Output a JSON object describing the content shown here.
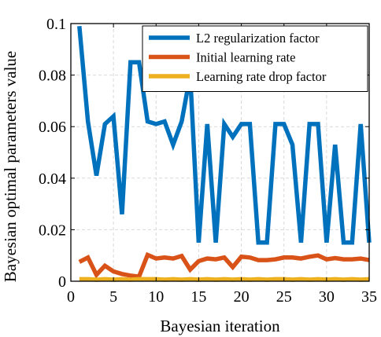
{
  "chart_data": {
    "type": "line",
    "xlabel": "Bayesian iteration",
    "ylabel": "Bayesian optimal parameters value",
    "xlim": [
      0,
      35
    ],
    "ylim": [
      0,
      0.1
    ],
    "xticks": [
      "0",
      "5",
      "10",
      "15",
      "20",
      "25",
      "30",
      "35"
    ],
    "yticks": [
      "0",
      "0.02",
      "0.04",
      "0.06",
      "0.08",
      "0.1"
    ],
    "xtick_values": [
      0,
      5,
      10,
      15,
      20,
      25,
      30,
      35
    ],
    "ytick_values": [
      0,
      0.02,
      0.04,
      0.06,
      0.08,
      0.1
    ],
    "grid": true,
    "legend_position": "top-right",
    "x": [
      1,
      2,
      3,
      4,
      5,
      6,
      7,
      8,
      9,
      10,
      11,
      12,
      13,
      14,
      15,
      16,
      17,
      18,
      19,
      20,
      21,
      22,
      23,
      24,
      25,
      26,
      27,
      28,
      29,
      30,
      31,
      32,
      33,
      34,
      35
    ],
    "series": [
      {
        "name": "L2 regularization factor",
        "color": "#0072BD",
        "values": [
          0.099,
          0.062,
          0.041,
          0.061,
          0.064,
          0.026,
          0.085,
          0.085,
          0.062,
          0.061,
          0.062,
          0.053,
          0.062,
          0.08,
          0.015,
          0.061,
          0.015,
          0.061,
          0.056,
          0.061,
          0.061,
          0.015,
          0.015,
          0.061,
          0.061,
          0.053,
          0.015,
          0.061,
          0.061,
          0.015,
          0.053,
          0.015,
          0.015,
          0.061,
          0.015
        ]
      },
      {
        "name": "Initial learning rate",
        "color": "#D95319",
        "values": [
          0.0075,
          0.0092,
          0.0025,
          0.006,
          0.0038,
          0.0028,
          0.0022,
          0.0018,
          0.0102,
          0.0088,
          0.0092,
          0.0088,
          0.0098,
          0.0045,
          0.0078,
          0.0088,
          0.0085,
          0.0092,
          0.0055,
          0.0095,
          0.0092,
          0.0082,
          0.0082,
          0.0085,
          0.0092,
          0.0092,
          0.0088,
          0.0095,
          0.01,
          0.0085,
          0.009,
          0.0085,
          0.0085,
          0.0088,
          0.0082
        ]
      },
      {
        "name": "Learning rate drop factor",
        "color": "#EDB120",
        "values": [
          0.0008,
          0.0008,
          0.0006,
          0.0008,
          0.0006,
          0.0008,
          0.0006,
          0.0008,
          0.0008,
          0.0008,
          0.0006,
          0.0008,
          0.0006,
          0.0008,
          0.0006,
          0.0008,
          0.0006,
          0.0008,
          0.0006,
          0.0008,
          0.0006,
          0.0008,
          0.0006,
          0.0008,
          0.0008,
          0.0006,
          0.0008,
          0.0006,
          0.0008,
          0.0006,
          0.0008,
          0.0006,
          0.0008,
          0.0006,
          0.0008
        ]
      }
    ]
  }
}
